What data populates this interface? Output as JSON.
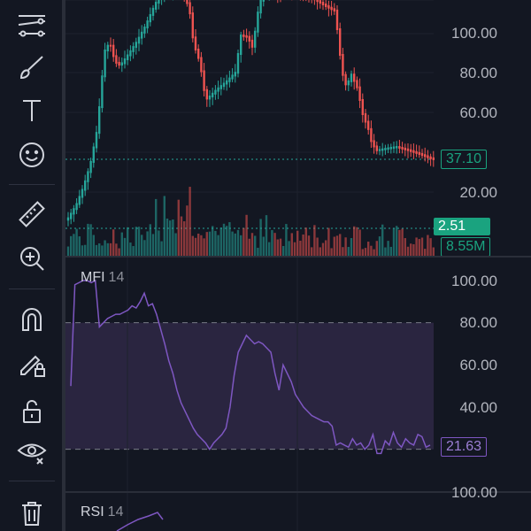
{
  "toolbar": {
    "items": [
      {
        "name": "trend-lines-tool-icon"
      },
      {
        "name": "brush-tool-icon"
      },
      {
        "name": "text-tool-icon"
      },
      {
        "name": "emoji-tool-icon"
      },
      {
        "name": "ruler-tool-icon"
      },
      {
        "name": "zoom-in-tool-icon"
      },
      {
        "name": "magnet-tool-icon"
      },
      {
        "name": "lock-drawings-icon"
      },
      {
        "name": "unlock-icon"
      },
      {
        "name": "visibility-icon"
      },
      {
        "name": "trash-icon"
      }
    ]
  },
  "price_pane": {
    "axis_labels": [
      "100.00",
      "80.00",
      "60.00",
      "20.00"
    ],
    "last_price": "37.10",
    "volume_change": "2.51",
    "volume": "8.55M",
    "colors": {
      "up": "#26a69a",
      "down": "#ef5350",
      "tag_green": "#1aa37f"
    }
  },
  "mfi_pane": {
    "title": "MFI",
    "length": "14",
    "axis_labels": [
      "100.00",
      "80.00",
      "60.00",
      "40.00"
    ],
    "last_value": "21.63",
    "line_color": "#7e57c2",
    "band_color": "#2a2540"
  },
  "rsi_pane": {
    "title": "RSI",
    "length": "14",
    "axis_label": "100.00"
  },
  "chart_data": [
    {
      "type": "line",
      "title": "MFI 14",
      "y": [
        50,
        98,
        99,
        100,
        100,
        99,
        100,
        78,
        80,
        82,
        83,
        84,
        84,
        85,
        86,
        88,
        87,
        90,
        94,
        88,
        89,
        84,
        77,
        70,
        62,
        56,
        48,
        42,
        38,
        34,
        30,
        27,
        25,
        23,
        20,
        23,
        25,
        27,
        30,
        40,
        55,
        66,
        70,
        74,
        72,
        70,
        71,
        70,
        68,
        66,
        56,
        48,
        60,
        56,
        52,
        46,
        43,
        40,
        38,
        36,
        35,
        34,
        33,
        33,
        31,
        22,
        23,
        22,
        21,
        25,
        22,
        23,
        20,
        22,
        27,
        18,
        18,
        24,
        22,
        28,
        23,
        21,
        25,
        23,
        22,
        27,
        26,
        21,
        22
      ],
      "ylim": [
        0,
        100
      ]
    }
  ]
}
